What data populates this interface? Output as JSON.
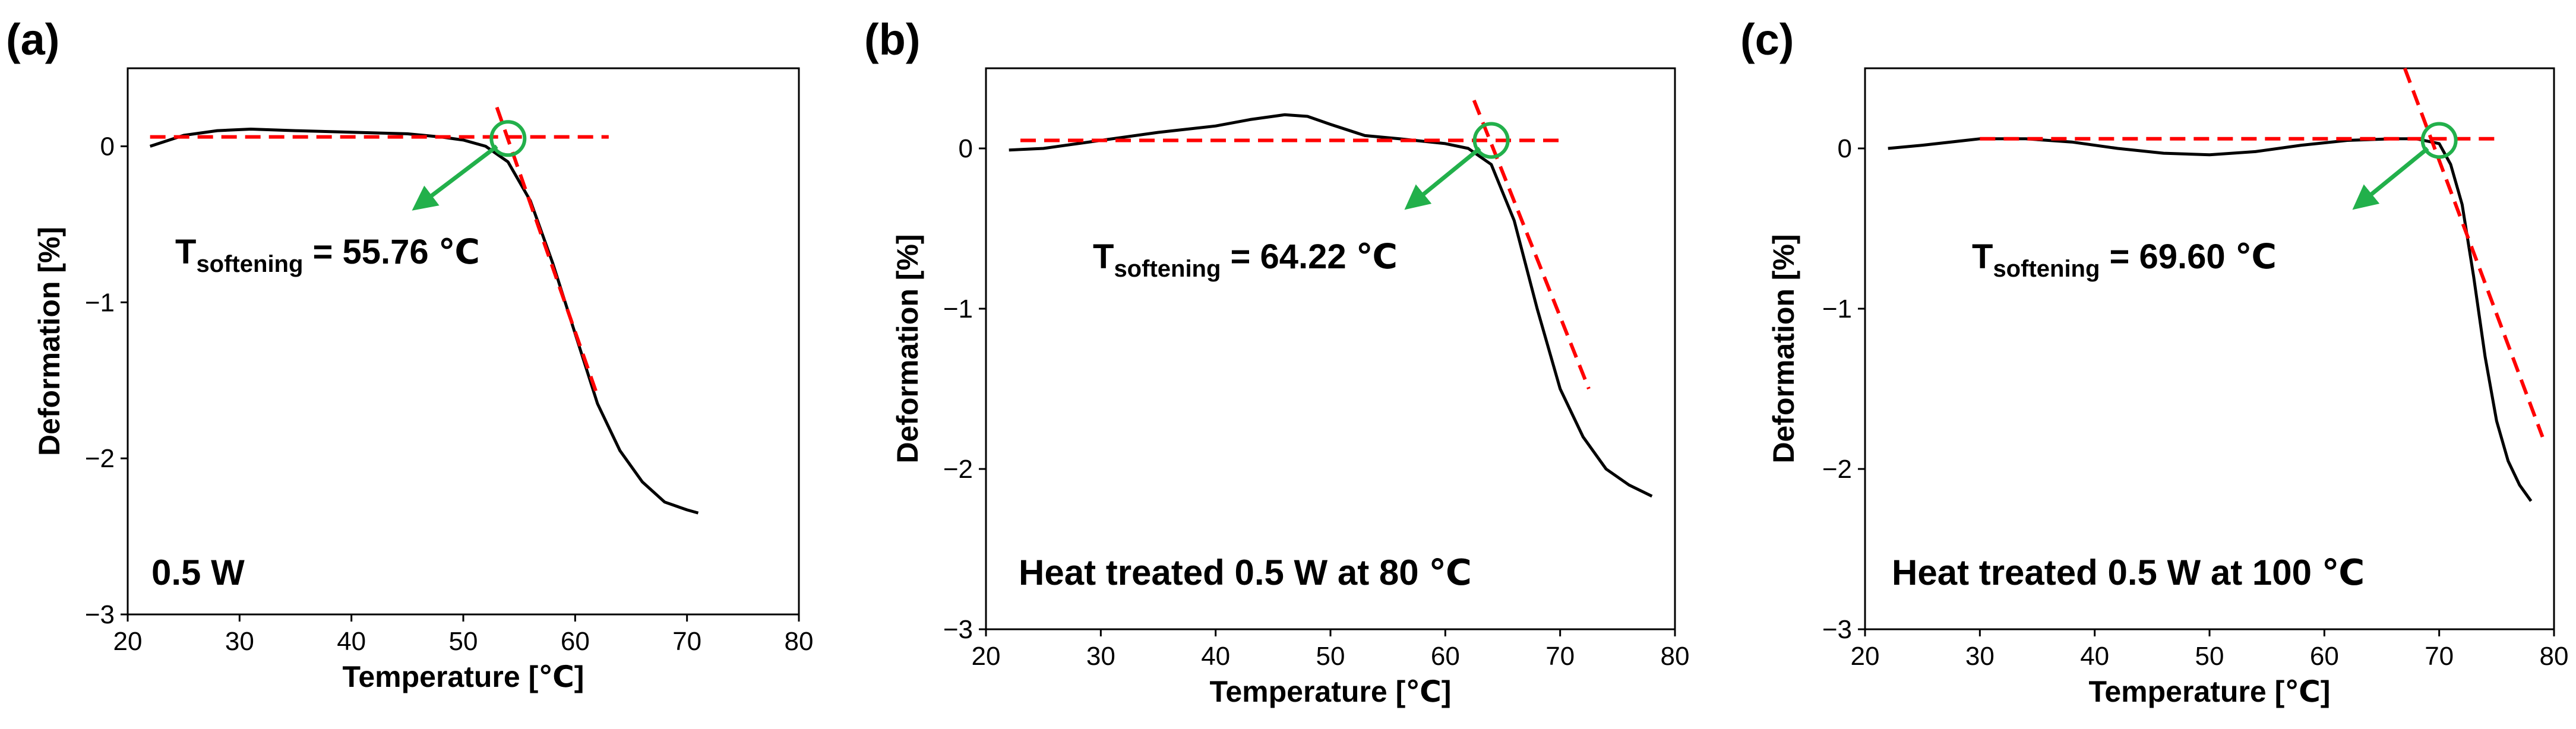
{
  "chart_data": [
    {
      "type": "line",
      "panel_label": "(a)",
      "condition": "0.5 W",
      "xlabel": "Temperature [℃]",
      "ylabel": "Deformation [%]",
      "xlim": [
        20,
        80
      ],
      "ylim": [
        -3,
        0.5
      ],
      "xticks": [
        "20",
        "30",
        "40",
        "50",
        "60",
        "70",
        "80"
      ],
      "yticks": [
        "0",
        "−1",
        "−2",
        "−3"
      ],
      "softening": {
        "prefix": "T",
        "subscript": "softening",
        "value_text": " = 55.76 ℃",
        "value": 55.76
      },
      "series": [
        {
          "name": "Deformation",
          "x": [
            22,
            25,
            28,
            31,
            35,
            40,
            45,
            48,
            50,
            52,
            54,
            56,
            58,
            60,
            62,
            64,
            66,
            68,
            70,
            71
          ],
          "y": [
            0.0,
            0.07,
            0.1,
            0.11,
            0.1,
            0.09,
            0.08,
            0.06,
            0.04,
            0.0,
            -0.1,
            -0.35,
            -0.75,
            -1.2,
            -1.65,
            -1.95,
            -2.15,
            -2.28,
            -2.33,
            -2.35
          ]
        }
      ],
      "baseline_fit": {
        "x": [
          22,
          63
        ],
        "y": [
          0.06,
          0.06
        ]
      },
      "slope_fit": {
        "x": [
          53,
          62
        ],
        "y": [
          0.25,
          -1.6
        ]
      },
      "marker_point": {
        "x": 54,
        "y": 0.05
      },
      "arrow": {
        "from": [
          53,
          0.0
        ],
        "to": [
          46,
          -0.38
        ]
      }
    },
    {
      "type": "line",
      "panel_label": "(b)",
      "condition": "Heat treated 0.5 W at 80 ℃",
      "xlabel": "Temperature [℃]",
      "ylabel": "Deformation [%]",
      "xlim": [
        20,
        80
      ],
      "ylim": [
        -3,
        0.5
      ],
      "xticks": [
        "20",
        "30",
        "40",
        "50",
        "60",
        "70",
        "80"
      ],
      "yticks": [
        "0",
        "−1",
        "−2",
        "−3"
      ],
      "softening": {
        "prefix": "T",
        "subscript": "softening",
        "value_text": " = 64.22 ℃",
        "value": 64.22
      },
      "series": [
        {
          "name": "Deformation",
          "x": [
            22,
            25,
            30,
            35,
            40,
            43,
            46,
            48,
            50,
            53,
            56,
            60,
            62,
            64,
            66,
            68,
            70,
            72,
            74,
            76,
            78
          ],
          "y": [
            -0.01,
            0.0,
            0.05,
            0.1,
            0.14,
            0.18,
            0.21,
            0.2,
            0.15,
            0.08,
            0.06,
            0.03,
            0.0,
            -0.1,
            -0.45,
            -1.0,
            -1.5,
            -1.8,
            -2.0,
            -2.1,
            -2.17
          ]
        }
      ],
      "baseline_fit": {
        "x": [
          23,
          70
        ],
        "y": [
          0.05,
          0.05
        ]
      },
      "slope_fit": {
        "x": [
          62.5,
          72.5
        ],
        "y": [
          0.3,
          -1.5
        ]
      },
      "marker_point": {
        "x": 64,
        "y": 0.05
      },
      "arrow": {
        "from": [
          63,
          0.0
        ],
        "to": [
          57,
          -0.35
        ]
      }
    },
    {
      "type": "line",
      "panel_label": "(c)",
      "condition": "Heat treated 0.5 W at 100 ℃",
      "xlabel": "Temperature [℃]",
      "ylabel": "Deformation [%]",
      "xlim": [
        20,
        80
      ],
      "ylim": [
        -3,
        0.5
      ],
      "xticks": [
        "20",
        "30",
        "40",
        "50",
        "60",
        "70",
        "80"
      ],
      "yticks": [
        "0",
        "−1",
        "−2",
        "−3"
      ],
      "softening": {
        "prefix": "T",
        "subscript": "softening",
        "value_text": " = 69.60 ℃",
        "value": 69.6
      },
      "series": [
        {
          "name": "Deformation",
          "x": [
            22,
            25,
            30,
            34,
            38,
            42,
            46,
            50,
            54,
            58,
            62,
            66,
            68,
            70,
            71,
            72,
            73,
            74,
            75,
            76,
            77,
            78
          ],
          "y": [
            0.0,
            0.02,
            0.06,
            0.06,
            0.04,
            0.0,
            -0.03,
            -0.04,
            -0.02,
            0.02,
            0.05,
            0.06,
            0.06,
            0.03,
            -0.1,
            -0.35,
            -0.8,
            -1.3,
            -1.7,
            -1.95,
            -2.1,
            -2.2
          ]
        }
      ],
      "baseline_fit": {
        "x": [
          30,
          75
        ],
        "y": [
          0.06,
          0.06
        ]
      },
      "slope_fit": {
        "x": [
          67,
          79
        ],
        "y": [
          0.5,
          -1.8
        ]
      },
      "marker_point": {
        "x": 70,
        "y": 0.05
      },
      "arrow": {
        "from": [
          69,
          0.0
        ],
        "to": [
          63,
          -0.35
        ]
      }
    }
  ],
  "colors": {
    "curve": "#000000",
    "fit_line": "#ff0000",
    "marker": "#22b04b",
    "arrow": "#22b04b"
  }
}
